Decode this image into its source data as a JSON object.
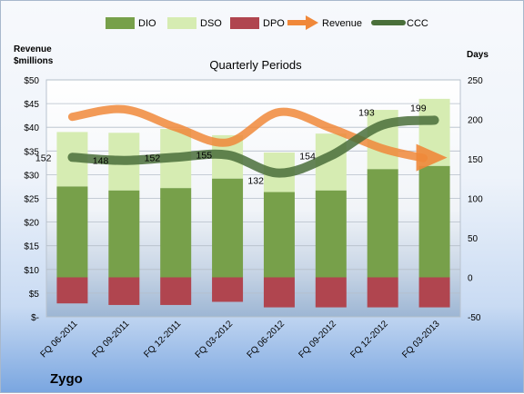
{
  "chart_data": {
    "type": "bar",
    "title": "Quarterly Periods",
    "company": "Zygo",
    "left_axis_label_line1": "Revenue",
    "left_axis_label_line2": "$millions",
    "right_axis_label": "Days",
    "categories": [
      "FQ 06-2011",
      "FQ 09-2011",
      "FQ 12-2011",
      "FQ 03-2012",
      "FQ 06-2012",
      "FQ 09-2012",
      "FQ 12-2012",
      "FQ 03-2013"
    ],
    "left_ticks": [
      "$-",
      "$5",
      "$10",
      "$15",
      "$20",
      "$25",
      "$30",
      "$35",
      "$40",
      "$45",
      "$50"
    ],
    "left_ylim": [
      0,
      50
    ],
    "right_ticks": [
      "-50",
      "0",
      "50",
      "100",
      "150",
      "200",
      "250"
    ],
    "right_ylim": [
      -50,
      250
    ],
    "series": [
      {
        "name": "DIO",
        "axis": "right",
        "values": [
          115,
          110,
          113,
          125,
          108,
          110,
          137,
          141
        ]
      },
      {
        "name": "DSO",
        "axis": "right",
        "values": [
          69,
          73,
          75,
          55,
          50,
          72,
          75,
          85
        ]
      },
      {
        "name": "DPO",
        "axis": "right",
        "values": [
          -33,
          -35,
          -35,
          -31,
          -38,
          -38,
          -38,
          -38
        ]
      },
      {
        "name": "Revenue",
        "axis": "left",
        "values": [
          42.2,
          43.8,
          40.0,
          36.8,
          43.2,
          39.8,
          35.5,
          33.6
        ]
      },
      {
        "name": "CCC",
        "axis": "right",
        "values": [
          152,
          148,
          152,
          155,
          132,
          154,
          193,
          199
        ]
      }
    ],
    "ccc_labels": [
      "152",
      "148",
      "152",
      "155",
      "132",
      "154",
      "193",
      "199"
    ],
    "legend_position": "top",
    "grid": true,
    "colors": {
      "DIO": "#77a04a",
      "DSO": "#d6ecb2",
      "DPO": "#b0454f",
      "Revenue": "#f0883a",
      "CCC": "#4a6f3a"
    }
  }
}
